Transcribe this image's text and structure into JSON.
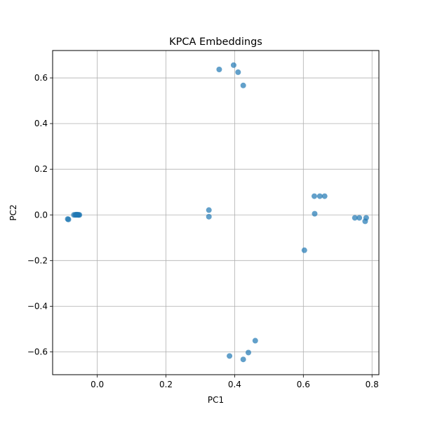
{
  "chart_data": {
    "type": "scatter",
    "title": "KPCA Embeddings",
    "xlabel": "PC1",
    "ylabel": "PC2",
    "xlim": [
      -0.13,
      0.82
    ],
    "ylim": [
      -0.7,
      0.72
    ],
    "xticks": [
      0.0,
      0.2,
      0.4,
      0.6,
      0.8
    ],
    "xtick_labels": [
      "0.0",
      "0.2",
      "0.4",
      "0.6",
      "0.8"
    ],
    "yticks": [
      -0.6,
      -0.4,
      -0.2,
      0.0,
      0.2,
      0.4,
      0.6
    ],
    "ytick_labels": [
      "−0.6",
      "−0.4",
      "−0.2",
      "0.0",
      "0.2",
      "0.4",
      "0.6"
    ],
    "grid": true,
    "color": "#1f77b4",
    "point_alpha": 0.7,
    "points": [
      {
        "x": -0.086,
        "y": -0.018
      },
      {
        "x": -0.084,
        "y": -0.02
      },
      {
        "x": -0.068,
        "y": 0.0
      },
      {
        "x": -0.064,
        "y": 0.0
      },
      {
        "x": -0.06,
        "y": 0.0
      },
      {
        "x": -0.056,
        "y": 0.0
      },
      {
        "x": -0.052,
        "y": 0.0
      },
      {
        "x": -0.058,
        "y": 0.001
      },
      {
        "x": -0.062,
        "y": 0.001
      },
      {
        "x": -0.054,
        "y": 0.0
      },
      {
        "x": 0.325,
        "y": 0.021
      },
      {
        "x": 0.325,
        "y": -0.008
      },
      {
        "x": 0.355,
        "y": 0.637
      },
      {
        "x": 0.397,
        "y": 0.656
      },
      {
        "x": 0.41,
        "y": 0.625
      },
      {
        "x": 0.425,
        "y": 0.567
      },
      {
        "x": 0.385,
        "y": -0.618
      },
      {
        "x": 0.425,
        "y": -0.633
      },
      {
        "x": 0.44,
        "y": -0.603
      },
      {
        "x": 0.46,
        "y": -0.551
      },
      {
        "x": 0.603,
        "y": -0.155
      },
      {
        "x": 0.632,
        "y": 0.082
      },
      {
        "x": 0.648,
        "y": 0.082
      },
      {
        "x": 0.662,
        "y": 0.082
      },
      {
        "x": 0.633,
        "y": 0.005
      },
      {
        "x": 0.75,
        "y": -0.013
      },
      {
        "x": 0.763,
        "y": -0.013
      },
      {
        "x": 0.78,
        "y": -0.028
      },
      {
        "x": 0.783,
        "y": -0.013
      }
    ]
  }
}
